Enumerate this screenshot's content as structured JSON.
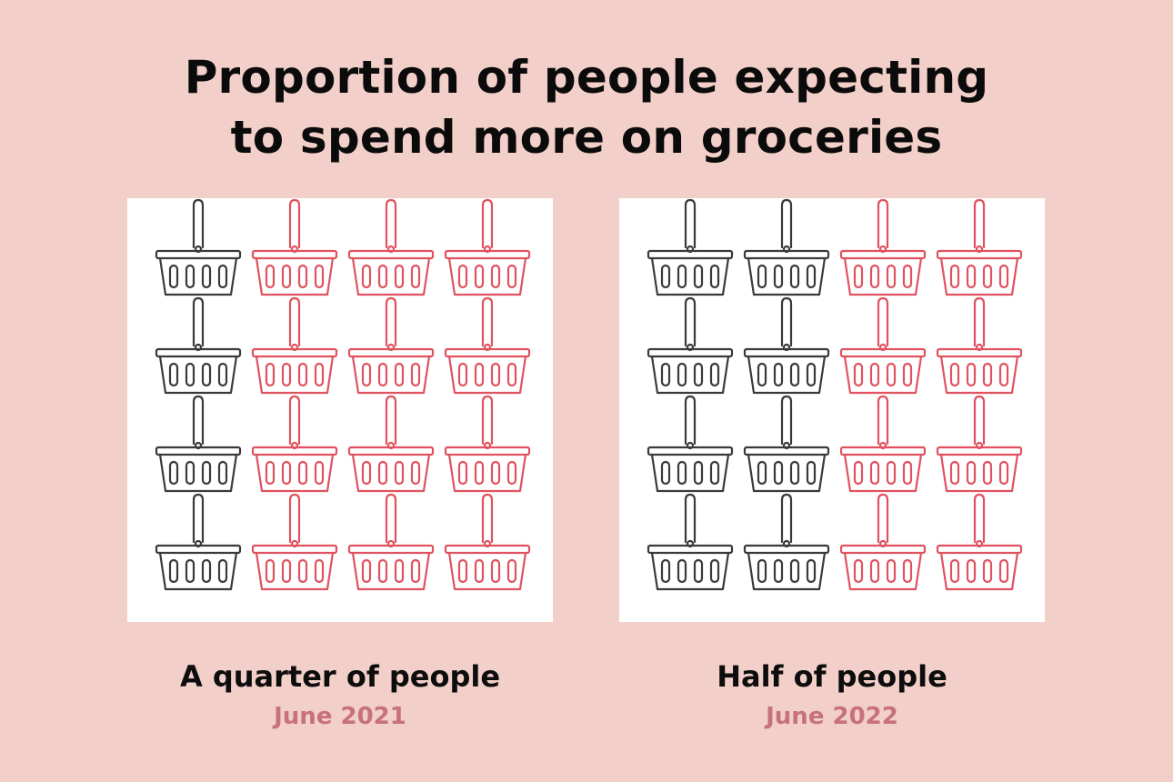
{
  "title": {
    "line1": "Proportion of people expecting",
    "line2": "to spend more on groceries"
  },
  "colors": {
    "background": "#f2cfc8",
    "panel": "#ffffff",
    "highlighted_basket": "#3a3a3a",
    "other_basket": "#e0525f",
    "date_text": "#c7727a"
  },
  "icon": "shopping-basket-icon",
  "chart_data": [
    {
      "type": "pictogram",
      "grid_rows": 4,
      "grid_cols": 4,
      "highlighted_cols": 1,
      "value": 0.25,
      "label": "A quarter of people",
      "date": "June 2021"
    },
    {
      "type": "pictogram",
      "grid_rows": 4,
      "grid_cols": 4,
      "highlighted_cols": 2,
      "value": 0.5,
      "label": "Half of people",
      "date": "June 2022"
    }
  ]
}
